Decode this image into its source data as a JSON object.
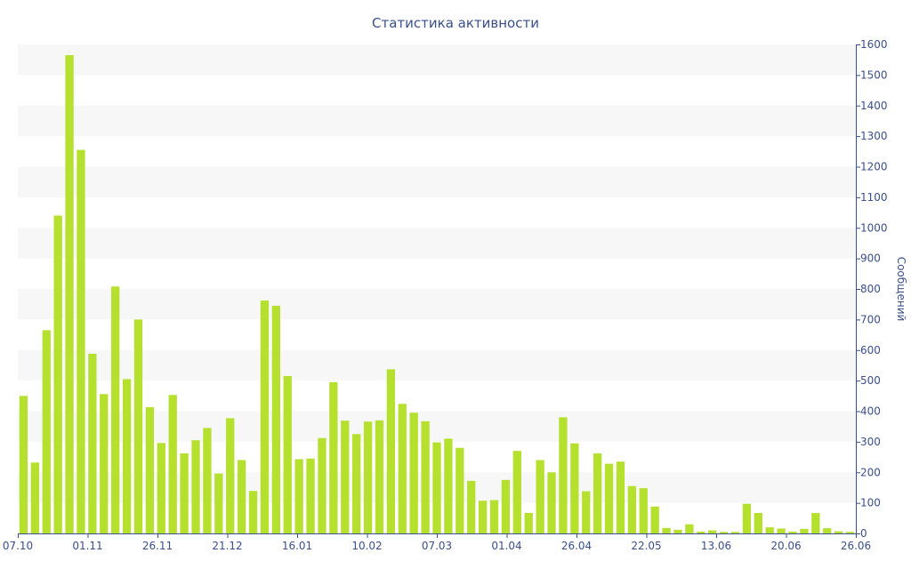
{
  "chart_data": {
    "type": "bar",
    "title": "Статистика активности",
    "ylabel": "Сообщений",
    "xlabel": "",
    "ylim": [
      0,
      1600
    ],
    "y_ticks": [
      0,
      100,
      200,
      300,
      400,
      500,
      600,
      700,
      800,
      900,
      1000,
      1100,
      1200,
      1300,
      1400,
      1500,
      1600
    ],
    "y_axis_side": "right",
    "x_tick_labels": [
      "07.10",
      "01.11",
      "26.11",
      "21.12",
      "16.01",
      "10.02",
      "07.03",
      "01.04",
      "26.04",
      "22.05",
      "13.06",
      "20.06",
      "26.06"
    ],
    "grid": "alternating horizontal bands",
    "bar_color": "#b5e02d",
    "axis_color": "#3a4f8c",
    "values": [
      450,
      232,
      665,
      1040,
      1565,
      1255,
      588,
      456,
      808,
      505,
      700,
      413,
      296,
      453,
      262,
      305,
      345,
      196,
      377,
      240,
      139,
      762,
      745,
      515,
      243,
      245,
      312,
      495,
      369,
      325,
      366,
      370,
      537,
      424,
      395,
      367,
      298,
      310,
      280,
      172,
      107,
      109,
      175,
      270,
      67,
      240,
      200,
      380,
      295,
      138,
      262,
      228,
      235,
      155,
      148,
      88,
      18,
      12,
      30,
      6,
      10,
      5,
      5,
      97,
      67,
      20,
      16,
      6,
      15,
      67,
      17,
      7,
      5
    ]
  }
}
